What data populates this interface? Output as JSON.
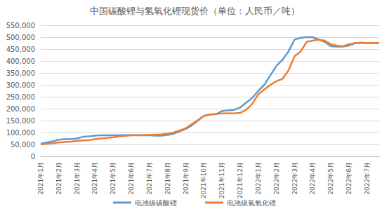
{
  "chart_data": {
    "type": "line",
    "title": "中国碳酸锂与氢氧化锂现货价（单位：人民币／吨）",
    "categories": [
      "2021年1月",
      null,
      null,
      "2021年2月",
      null,
      null,
      "2021年3月",
      null,
      null,
      "2021年4月",
      null,
      null,
      "2021年5月",
      null,
      null,
      "2021年6月",
      null,
      null,
      "2021年7月",
      null,
      null,
      "2021年8月",
      null,
      null,
      "2021年9月",
      null,
      null,
      "2021年10月",
      null,
      null,
      "2021年11月",
      null,
      null,
      "2021年12月",
      null,
      null,
      "2022年1月",
      null,
      null,
      "2022年2月",
      null,
      null,
      "2022年3月",
      null,
      null,
      "2022年4月",
      null,
      null,
      "2022年5月",
      null,
      null,
      "2022年6月",
      null,
      null,
      "2022年7月",
      null,
      null
    ],
    "series": [
      {
        "name": "电池级碳酸锂",
        "color": "#5b9bd5",
        "values": [
          53000,
          58000,
          63000,
          70000,
          72000,
          72000,
          75000,
          82000,
          84000,
          87000,
          88000,
          88000,
          88000,
          88000,
          89000,
          89000,
          88000,
          88000,
          88000,
          87000,
          87000,
          90000,
          95000,
          105000,
          115000,
          130000,
          150000,
          170000,
          175000,
          177000,
          190000,
          193000,
          195000,
          205000,
          225000,
          245000,
          275000,
          300000,
          340000,
          380000,
          405000,
          440000,
          490000,
          497000,
          500000,
          500000,
          490000,
          480000,
          462000,
          460000,
          460000,
          465000,
          475000,
          475000,
          475000,
          475000,
          475000
        ]
      },
      {
        "name": "电池级氢氧化锂",
        "color": "#ed7d31",
        "values": [
          50000,
          53000,
          55000,
          58000,
          60000,
          62000,
          65000,
          67000,
          68000,
          72000,
          75000,
          77000,
          80000,
          84000,
          86000,
          88000,
          89000,
          89000,
          90000,
          91000,
          92000,
          95000,
          100000,
          108000,
          118000,
          135000,
          152000,
          170000,
          175000,
          178000,
          180000,
          180000,
          180000,
          182000,
          195000,
          220000,
          260000,
          280000,
          300000,
          315000,
          325000,
          360000,
          420000,
          440000,
          480000,
          485000,
          490000,
          485000,
          470000,
          465000,
          462000,
          470000,
          475000,
          477000,
          476000,
          476000,
          476000
        ]
      }
    ],
    "ylim": [
      0,
      550000
    ],
    "yticks": [
      0,
      50000,
      100000,
      150000,
      200000,
      250000,
      300000,
      350000,
      400000,
      450000,
      500000,
      550000
    ],
    "grid": true,
    "legend": "bottom"
  }
}
